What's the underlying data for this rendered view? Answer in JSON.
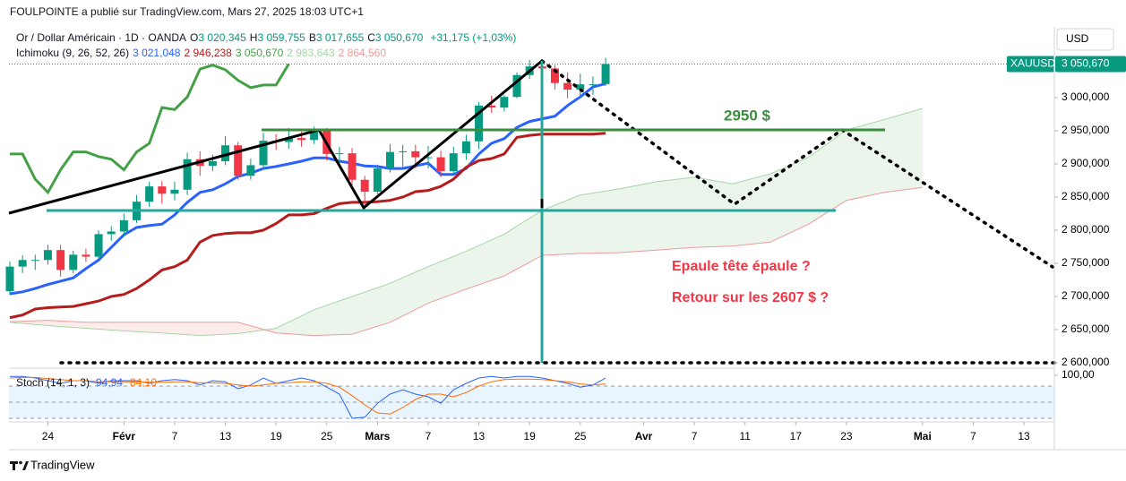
{
  "header": {
    "publisher": "FOULPOINTE a publié sur TradingView.com, Mars 27, 2025 18:03 UTC+1"
  },
  "footer": {
    "brand": "TradingView"
  },
  "chart_data": {
    "type": "candlestick",
    "symbol_title": "Or / Dollar Américain · 1D · OANDA",
    "ohlc_legend": [
      {
        "key": "O",
        "label": "3 020,345"
      },
      {
        "key": "H",
        "label": "3 059,755"
      },
      {
        "key": "B",
        "label": "3 017,655"
      },
      {
        "key": "C",
        "label": "3 050,670"
      }
    ],
    "change_label": "+31,175 (+1,03%)",
    "currency": "USD",
    "ticker": "XAUUSD",
    "last_price": {
      "value": 3050.67,
      "label": "3 050,670"
    },
    "up_color": "#089981",
    "down_color": "#f23645",
    "xlim": [
      0,
      82.4
    ],
    "xticks": [
      {
        "value": 3,
        "label": "24"
      },
      {
        "value": 9,
        "label": "Févr"
      },
      {
        "value": 13,
        "label": "7"
      },
      {
        "value": 17,
        "label": "13"
      },
      {
        "value": 21,
        "label": "19"
      },
      {
        "value": 25,
        "label": "25"
      },
      {
        "value": 29,
        "label": "Mars"
      },
      {
        "value": 33,
        "label": "7"
      },
      {
        "value": 37,
        "label": "13"
      },
      {
        "value": 41,
        "label": "19"
      },
      {
        "value": 45,
        "label": "25"
      },
      {
        "value": 50,
        "label": "Avr"
      },
      {
        "value": 54,
        "label": "7"
      },
      {
        "value": 58,
        "label": "11"
      },
      {
        "value": 62,
        "label": "17"
      },
      {
        "value": 66,
        "label": "23"
      },
      {
        "value": 72,
        "label": "Mai"
      },
      {
        "value": 76,
        "label": "7"
      },
      {
        "value": 80,
        "label": "13"
      }
    ],
    "ylim": [
      2593.2,
      3106.7
    ],
    "yticks": [
      {
        "value": 2600,
        "label": "2 600,000"
      },
      {
        "value": 2650,
        "label": "2 650,000"
      },
      {
        "value": 2700,
        "label": "2 700,000"
      },
      {
        "value": 2750,
        "label": "2 750,000"
      },
      {
        "value": 2800,
        "label": "2 800,000"
      },
      {
        "value": 2850,
        "label": "2 850,000"
      },
      {
        "value": 2900,
        "label": "2 900,000"
      },
      {
        "value": 2950,
        "label": "2 950,000"
      },
      {
        "value": 3000,
        "label": "3 000,000"
      }
    ],
    "grid": false,
    "open": [
      2708,
      2745,
      2755,
      2755,
      2770,
      2740,
      2763,
      2760,
      2794,
      2798,
      2815,
      2843,
      2866,
      2855,
      2861,
      2907,
      2897,
      2904,
      2928,
      2882,
      2898,
      2935,
      2933,
      2939,
      2936,
      2951,
      2915,
      2916,
      2876,
      2858,
      2893,
      2918,
      2919,
      2910,
      2910,
      2889,
      2916,
      2934,
      2988,
      2985,
      3001,
      3034,
      3047,
      3044,
      3022,
      3012,
      3020,
      3020.345
    ],
    "high": [
      2753,
      2762,
      2763,
      2778,
      2778,
      2769,
      2772,
      2800,
      2806,
      2825,
      2853,
      2873,
      2874,
      2873,
      2917,
      2919,
      2914,
      2942,
      2933,
      2908,
      2947,
      2945,
      2954,
      2949,
      2956,
      2954,
      2926,
      2924,
      2882,
      2899,
      2930,
      2929,
      2929,
      2927,
      2920,
      2926,
      2944,
      2993,
      3003,
      3004,
      3038,
      3057,
      3057,
      3049,
      3038,
      3036,
      3032,
      3059.755
    ],
    "low": [
      2702,
      2735,
      2740,
      2748,
      2730,
      2735,
      2752,
      2755,
      2784,
      2790,
      2811,
      2835,
      2840,
      2845,
      2853,
      2882,
      2889,
      2898,
      2876,
      2876,
      2892,
      2921,
      2923,
      2926,
      2930,
      2905,
      2895,
      2868,
      2832,
      2854,
      2887,
      2892,
      2893,
      2893,
      2880,
      2886,
      2906,
      2922,
      2977,
      2979,
      2999,
      3028,
      3032,
      3012,
      2999,
      3002,
      3004,
      3017.655
    ],
    "close": [
      2745,
      2755,
      2755,
      2770,
      2740,
      2763,
      2760,
      2794,
      2798,
      2815,
      2843,
      2866,
      2855,
      2861,
      2907,
      2897,
      2904,
      2928,
      2882,
      2898,
      2935,
      2933,
      2939,
      2936,
      2951,
      2915,
      2916,
      2876,
      2858,
      2893,
      2918,
      2919,
      2910,
      2910,
      2889,
      2916,
      2934,
      2988,
      2985,
      3001,
      3034,
      3047,
      3044,
      3022,
      3012,
      3020,
      3020,
      3050.67
    ],
    "annotations": {
      "neckline_label": "2950 $",
      "question": "Epaule tête épaule ?",
      "target": "Retour sur les 2607 $ ?"
    },
    "ichimoku": {
      "title": "Ichimoku (9, 26, 52, 26)",
      "series": [
        {
          "color": "#2962ff",
          "value_label": "3 021,048",
          "values": [
            2704,
            2707,
            2712,
            2718,
            2723,
            2728,
            2742,
            2755,
            2774,
            2793,
            2804,
            2807,
            2809,
            2823,
            2842,
            2857,
            2861,
            2870,
            2881,
            2886,
            2893,
            2896,
            2900,
            2904,
            2909,
            2909,
            2904,
            2901,
            2897,
            2896,
            2893,
            2893,
            2897,
            2901,
            2884,
            2884,
            2893,
            2915,
            2931,
            2938,
            2955,
            2964,
            2968,
            2972,
            2988,
            3001,
            3016,
            3021.048
          ]
        },
        {
          "color": "#b71c1c",
          "value_label": "2 946,238",
          "values": [
            2668,
            2672,
            2681,
            2683,
            2684,
            2685,
            2689,
            2693,
            2700,
            2703,
            2712,
            2725,
            2740,
            2745,
            2755,
            2782,
            2792,
            2795,
            2796,
            2796,
            2800,
            2810,
            2823,
            2823,
            2825,
            2833,
            2840,
            2842,
            2842,
            2843,
            2845,
            2850,
            2858,
            2860,
            2866,
            2877,
            2895,
            2905,
            2908,
            2915,
            2940,
            2943,
            2945,
            2945,
            2945,
            2945,
            2945,
            2946.238
          ]
        },
        {
          "color": "#43a047",
          "value_label": "3 050,670",
          "values": [
            2915,
            2915,
            2877,
            2857,
            2891,
            2918,
            2918,
            2911,
            2907,
            2891,
            2918,
            2931,
            2985,
            2982,
            3001,
            3043,
            3049,
            3042,
            3026,
            3015,
            3019,
            3019,
            3050.67
          ]
        },
        {
          "color": "#a5d6a7",
          "value_label": "2 983,643",
          "x": [
            0,
            3,
            6,
            9,
            12,
            15,
            18,
            21,
            24,
            27,
            30,
            33,
            36,
            39,
            42,
            45,
            48,
            51,
            54,
            57,
            60,
            63,
            66,
            69,
            72
          ],
          "values": [
            2661,
            2656,
            2652,
            2648,
            2645,
            2641,
            2644,
            2652,
            2680,
            2700,
            2720,
            2745,
            2768,
            2794,
            2830,
            2853,
            2862,
            2873,
            2880,
            2870,
            2885,
            2910,
            2951,
            2967,
            2983.643
          ]
        },
        {
          "color": "#ef9a9a",
          "value_label": "2 864,560",
          "x": [
            0,
            3,
            6,
            9,
            12,
            15,
            18,
            21,
            24,
            27,
            30,
            33,
            36,
            39,
            42,
            45,
            48,
            51,
            54,
            57,
            60,
            63,
            66,
            69,
            72
          ],
          "values": [
            2662,
            2664,
            2661,
            2661,
            2661,
            2661,
            2661,
            2645,
            2641,
            2643,
            2661,
            2690,
            2711,
            2731,
            2762,
            2765,
            2766,
            2770,
            2774,
            2776,
            2782,
            2809,
            2845,
            2857,
            2864.56
          ]
        }
      ]
    },
    "stochastic": {
      "title": "Stoch (14, 1, 3)",
      "ylim": [
        15,
        111.7
      ],
      "yticks": [
        {
          "value": 100,
          "label": "100,00"
        }
      ],
      "levels": [
        80,
        50,
        20
      ],
      "series": [
        {
          "color": "#2962ff",
          "value_label": "94,94",
          "values": [
            98,
            98,
            95,
            90,
            85,
            90,
            90,
            85,
            90,
            90,
            90,
            85,
            90,
            92,
            90,
            82,
            90,
            88,
            75,
            82,
            95,
            85,
            90,
            95,
            90,
            78,
            65,
            20,
            22,
            48,
            65,
            73,
            65,
            60,
            48,
            73,
            85,
            95,
            98,
            95,
            98,
            98,
            95,
            90,
            85,
            78,
            82,
            94.94
          ]
        },
        {
          "color": "#ff6d00",
          "value_label": "84,10",
          "values": [
            95,
            96,
            96,
            94,
            92,
            90,
            90,
            88,
            88,
            88,
            88,
            87,
            87,
            88,
            88,
            86,
            86,
            85,
            82,
            80,
            82,
            85,
            86,
            88,
            88,
            85,
            78,
            62,
            45,
            30,
            28,
            40,
            55,
            65,
            65,
            60,
            68,
            80,
            88,
            92,
            93,
            93,
            92,
            90,
            88,
            84,
            82,
            84.1
          ]
        }
      ]
    }
  }
}
